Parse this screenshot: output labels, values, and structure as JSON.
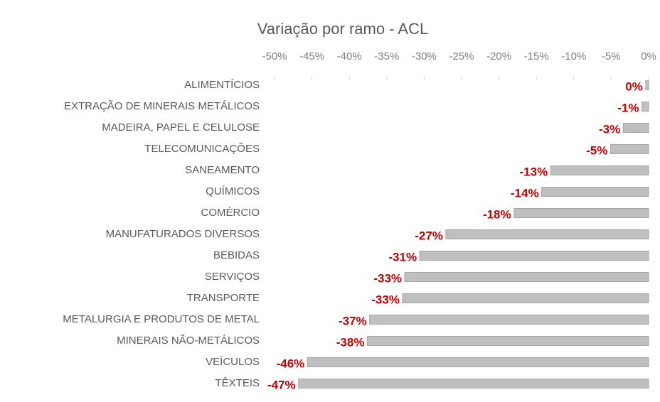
{
  "chart_data": {
    "type": "barh",
    "title": "Variação por ramo - ACL",
    "categories": [
      "ALIMENTÍCIOS",
      "EXTRAÇÃO DE MINERAIS METÁLICOS",
      "MADEIRA, PAPEL E CELULOSE",
      "TELECOMUNICAÇÕES",
      "SANEAMENTO",
      "QUÍMICOS",
      "COMÉRCIO",
      "MANUFATURADOS DIVERSOS",
      "BEBIDAS",
      "SERVIÇOS",
      "TRANSPORTE",
      "METALURGIA E PRODUTOS DE METAL",
      "MINERAIS NÃO-METÁLICOS",
      "VEÍCULOS",
      "TÊXTEIS"
    ],
    "values": [
      -0.4,
      -0.9,
      -3.4,
      -5.1,
      -13.1,
      -14.3,
      -18.0,
      -27.1,
      -30.6,
      -32.6,
      -32.9,
      -37.3,
      -37.6,
      -45.6,
      -46.8
    ],
    "value_labels": [
      "0%",
      "-1%",
      "-3%",
      "-5%",
      "-13%",
      "-14%",
      "-18%",
      "-27%",
      "-31%",
      "-33%",
      "-33%",
      "-37%",
      "-38%",
      "-46%",
      "-47%"
    ],
    "color": "#bfbfbf",
    "label_color": "#c00000",
    "xlim": [
      -50,
      0
    ],
    "xticks": [
      {
        "value": -50,
        "label": "-50%"
      },
      {
        "value": -45,
        "label": "-45%"
      },
      {
        "value": -40,
        "label": "-40%"
      },
      {
        "value": -35,
        "label": "-35%"
      },
      {
        "value": -30,
        "label": "-30%"
      },
      {
        "value": -25,
        "label": "-25%"
      },
      {
        "value": -20,
        "label": "-20%"
      },
      {
        "value": -15,
        "label": "-15%"
      },
      {
        "value": -10,
        "label": "-10%"
      },
      {
        "value": -5,
        "label": "-5%"
      },
      {
        "value": 0,
        "label": "0%"
      }
    ]
  }
}
